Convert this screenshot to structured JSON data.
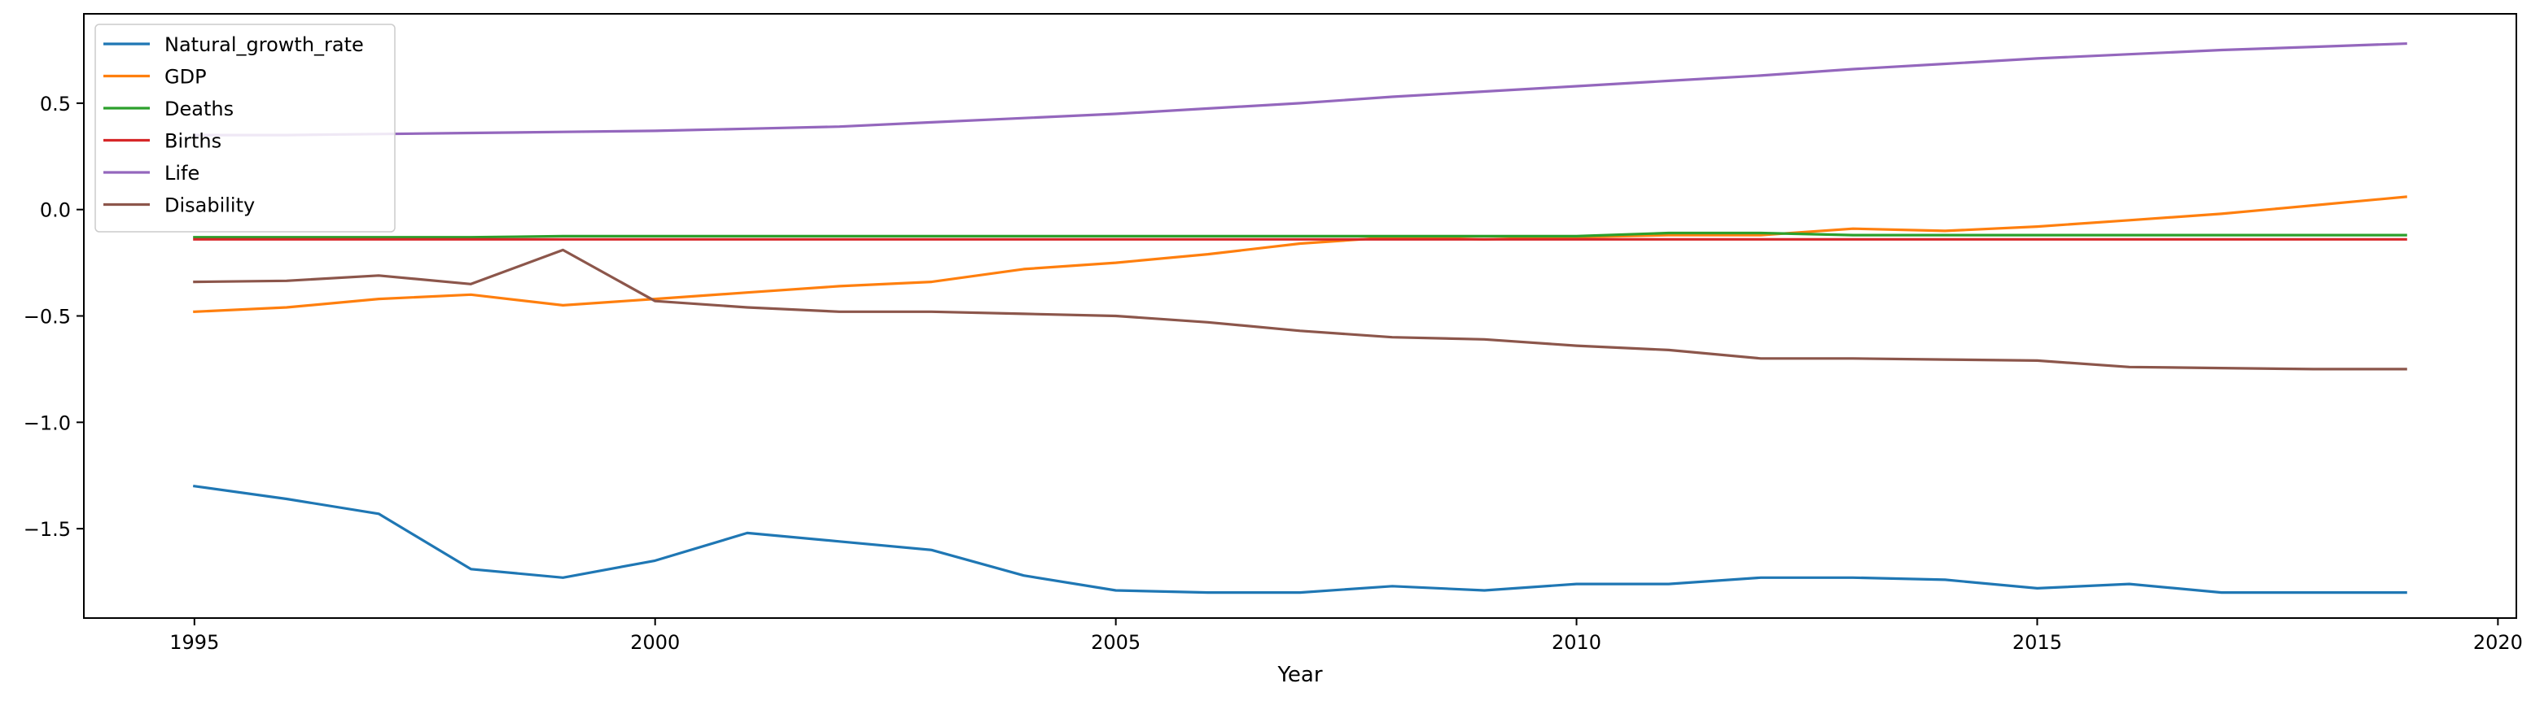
{
  "chart_data": {
    "type": "line",
    "title": "",
    "xlabel": "Year",
    "ylabel": "",
    "xlim": [
      1993.8,
      2020.2
    ],
    "ylim": [
      -1.92,
      0.92
    ],
    "xticks": [
      1995,
      2000,
      2005,
      2010,
      2015,
      2020
    ],
    "yticks": [
      -1.5,
      -1.0,
      -0.5,
      0.0,
      0.5
    ],
    "ytick_labels": [
      "−1.5",
      "−1.0",
      "−0.5",
      "0.0",
      "0.5"
    ],
    "grid": false,
    "legend": "top-left",
    "x": [
      1995,
      1996,
      1997,
      1998,
      1999,
      2000,
      2001,
      2002,
      2003,
      2004,
      2005,
      2006,
      2007,
      2008,
      2009,
      2010,
      2011,
      2012,
      2013,
      2014,
      2015,
      2016,
      2017,
      2018,
      2019
    ],
    "series": [
      {
        "name": "Natural_growth_rate",
        "color": "#1f77b4",
        "values": [
          -1.3,
          -1.36,
          -1.43,
          -1.69,
          -1.73,
          -1.65,
          -1.52,
          -1.56,
          -1.6,
          -1.72,
          -1.79,
          -1.8,
          -1.8,
          -1.77,
          -1.79,
          -1.76,
          -1.76,
          -1.73,
          -1.73,
          -1.74,
          -1.78,
          -1.76,
          -1.8,
          -1.8,
          -1.8
        ]
      },
      {
        "name": "GDP",
        "color": "#ff7f0e",
        "values": [
          -0.48,
          -0.46,
          -0.42,
          -0.4,
          -0.45,
          -0.42,
          -0.39,
          -0.36,
          -0.34,
          -0.28,
          -0.25,
          -0.21,
          -0.16,
          -0.13,
          -0.14,
          -0.13,
          -0.12,
          -0.12,
          -0.09,
          -0.1,
          -0.08,
          -0.05,
          -0.02,
          0.02,
          0.06
        ]
      },
      {
        "name": "Deaths",
        "color": "#2ca02c",
        "values": [
          -0.13,
          -0.13,
          -0.13,
          -0.13,
          -0.125,
          -0.125,
          -0.125,
          -0.125,
          -0.125,
          -0.125,
          -0.125,
          -0.125,
          -0.125,
          -0.125,
          -0.125,
          -0.125,
          -0.11,
          -0.11,
          -0.12,
          -0.12,
          -0.12,
          -0.12,
          -0.12,
          -0.12,
          -0.12
        ]
      },
      {
        "name": "Births",
        "color": "#d62728",
        "values": [
          -0.14,
          -0.14,
          -0.14,
          -0.14,
          -0.14,
          -0.14,
          -0.14,
          -0.14,
          -0.14,
          -0.14,
          -0.14,
          -0.14,
          -0.14,
          -0.14,
          -0.14,
          -0.14,
          -0.14,
          -0.14,
          -0.14,
          -0.14,
          -0.14,
          -0.14,
          -0.14,
          -0.14,
          -0.14
        ]
      },
      {
        "name": "Life",
        "color": "#9467bd",
        "values": [
          0.35,
          0.35,
          0.355,
          0.36,
          0.365,
          0.37,
          0.38,
          0.39,
          0.41,
          0.43,
          0.45,
          0.475,
          0.5,
          0.53,
          0.555,
          0.58,
          0.605,
          0.63,
          0.66,
          0.685,
          0.71,
          0.73,
          0.75,
          0.765,
          0.78
        ]
      },
      {
        "name": "Disability",
        "color": "#8c564b",
        "values": [
          -0.34,
          -0.335,
          -0.31,
          -0.35,
          -0.19,
          -0.43,
          -0.46,
          -0.48,
          -0.48,
          -0.49,
          -0.5,
          -0.53,
          -0.57,
          -0.6,
          -0.61,
          -0.64,
          -0.66,
          -0.7,
          -0.7,
          -0.705,
          -0.71,
          -0.74,
          -0.745,
          -0.75,
          -0.75
        ]
      }
    ]
  }
}
